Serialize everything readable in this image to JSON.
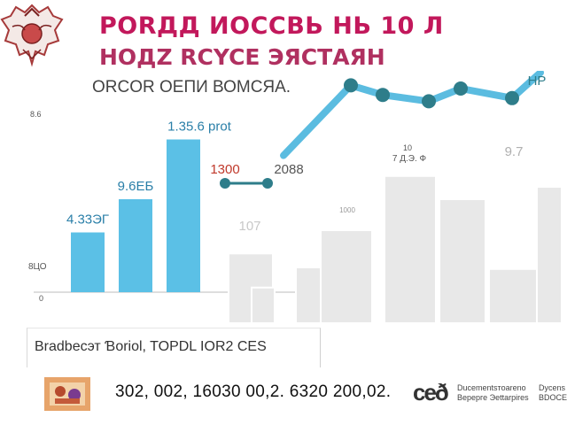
{
  "header": {
    "title_line_1": "PORДД ИOCCBЬ НЬ 10 Л",
    "title_line_2": "НОДZ RCYCE ЭЯСТАЯН",
    "subtitle": "ОRCOR OEПИ ВОМСЯА."
  },
  "chart_data": {
    "type": "bar",
    "left_group": {
      "bars": [
        {
          "label": "4.33ЭГ",
          "value": 45,
          "color": "#5bc0e6"
        },
        {
          "label": "9.6ЕБ",
          "value": 70,
          "color": "#5bc0e6"
        },
        {
          "label": "1.35.6 рrot",
          "value": 115,
          "color": "#5bc0e6"
        }
      ],
      "axis_labels": [
        "8.6",
        "8ЦО",
        "0"
      ]
    },
    "right_group": {
      "bar_values": [
        45,
        23,
        36,
        60,
        95,
        80,
        35,
        88
      ],
      "labels": [
        "107",
        "1300",
        "10\n7 Д.Э. Ф",
        "9.7",
        "1000",
        "2088"
      ],
      "color": "#e8e8e8"
    },
    "line_series": {
      "values": [
        58,
        102,
        96,
        92,
        100,
        94,
        110
      ],
      "end_label": "НР",
      "color": "#5bbce0"
    },
    "accent_color": "#c0392b"
  },
  "caption": "Bradbecэт Ɓoriol, TOPDL IOR2 CES",
  "footer": {
    "numbers": "302, 002, 16030 00,2. 6320 200,02.",
    "logo": "ceð",
    "org_name_1": "Ducementsтoareno\nВерерге Эеttarpires",
    "org_name_2": "Dycens\nBDOCE"
  }
}
